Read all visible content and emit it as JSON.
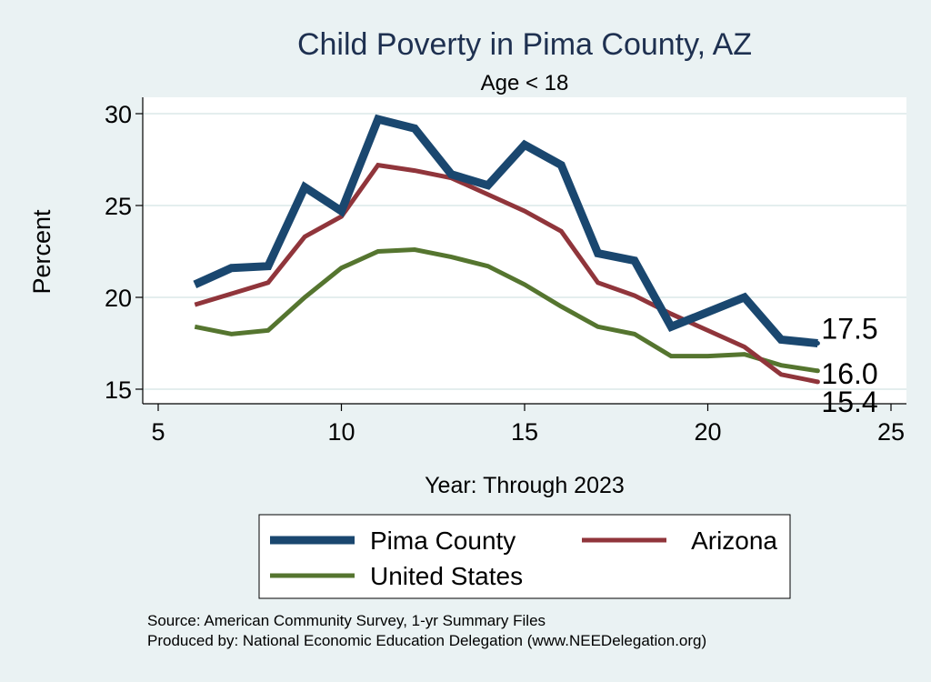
{
  "chart_data": {
    "type": "line",
    "title": "Child Poverty in Pima County, AZ",
    "subtitle": "Age < 18",
    "xlabel": "Year: Through 2023",
    "ylabel": "Percent",
    "xlim": [
      5,
      25
    ],
    "ylim": [
      15,
      30
    ],
    "xticks": [
      5,
      10,
      15,
      20,
      25
    ],
    "yticks": [
      15,
      20,
      25,
      30
    ],
    "grid": true,
    "legend_position": "bottom",
    "x": [
      6,
      7,
      8,
      9,
      10,
      11,
      12,
      13,
      14,
      15,
      16,
      17,
      18,
      19,
      20,
      21,
      22,
      23
    ],
    "series": [
      {
        "name": "Pima County",
        "color": "#1a476f",
        "values": [
          20.7,
          21.6,
          21.7,
          26.0,
          24.7,
          29.7,
          29.2,
          26.7,
          26.1,
          28.3,
          27.2,
          22.4,
          22.0,
          18.4,
          19.2,
          20.0,
          17.7,
          17.5
        ],
        "end_label": "17.5"
      },
      {
        "name": "Arizona",
        "color": "#90353b",
        "values": [
          19.6,
          20.2,
          20.8,
          23.3,
          24.4,
          27.2,
          26.9,
          26.5,
          25.6,
          24.7,
          23.6,
          20.8,
          20.1,
          19.1,
          18.2,
          17.3,
          15.8,
          15.4
        ],
        "end_label": "15.4"
      },
      {
        "name": "United States",
        "color": "#55752f",
        "values": [
          18.4,
          18.0,
          18.2,
          20.0,
          21.6,
          22.5,
          22.6,
          22.2,
          21.7,
          20.7,
          19.5,
          18.4,
          18.0,
          16.8,
          16.8,
          16.9,
          16.3,
          16.0
        ],
        "end_label": "16.0"
      }
    ]
  },
  "footer": {
    "source": "Source: American Community Survey, 1-yr Summary Files",
    "produced_by": "Produced by: National Economic Education Delegation (www.NEEDelegation.org)"
  }
}
